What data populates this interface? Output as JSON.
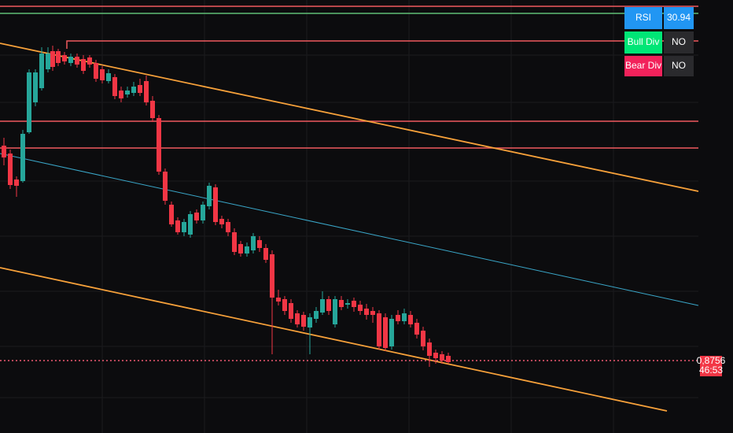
{
  "indicator_table": {
    "rows": [
      [
        "RSI",
        "30.94"
      ],
      [
        "Bull Div",
        "NO"
      ],
      [
        "Bear Div",
        "NO"
      ]
    ]
  },
  "price_label": {
    "price": "0,8756",
    "countdown": "46:53"
  }
}
